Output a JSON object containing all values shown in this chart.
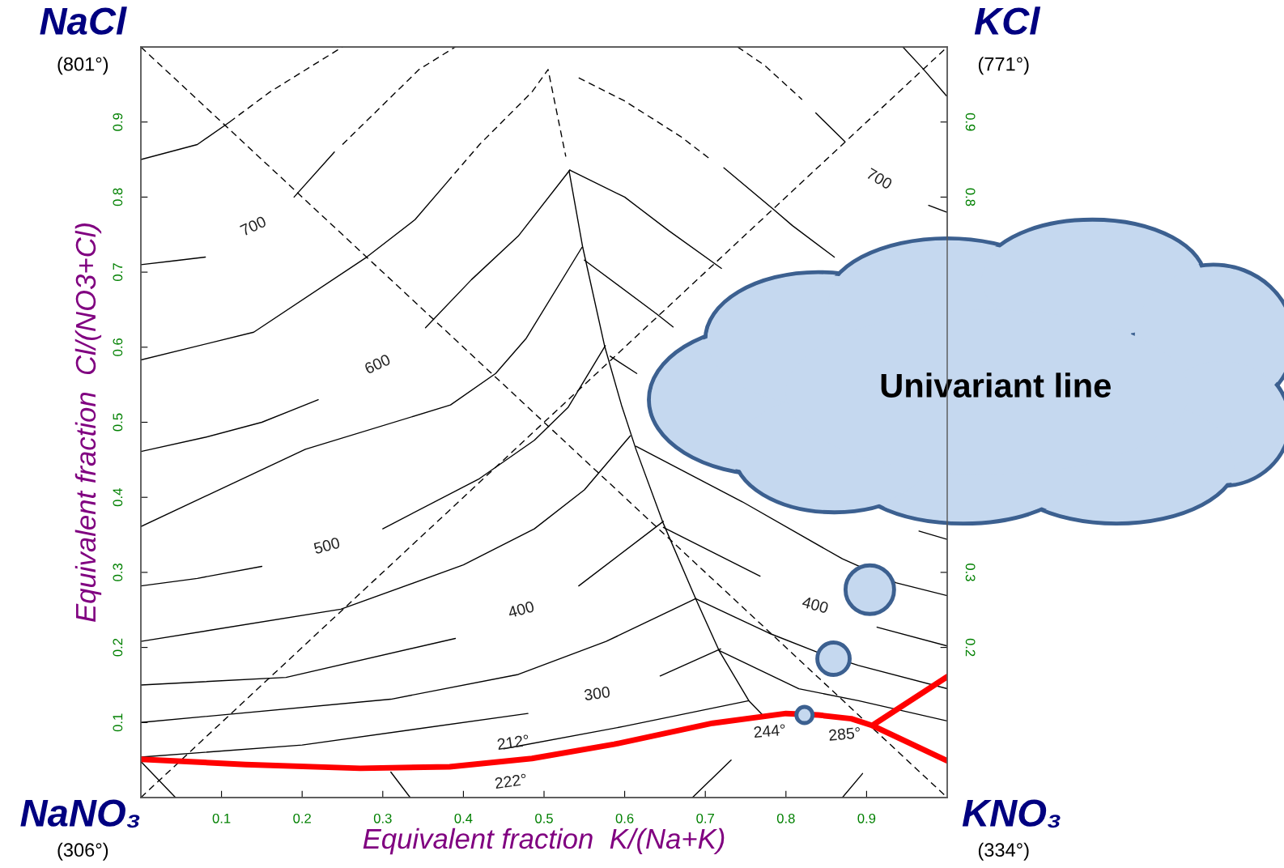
{
  "chart_data": {
    "type": "line",
    "xlabel": "Equivalent fraction  K/(Na+K)",
    "ylabel": "Equivalent fraction  Cl/(NO3+Cl)",
    "xlim": [
      0,
      1
    ],
    "ylim": [
      0,
      1
    ],
    "xticks": [
      0.1,
      0.2,
      0.3,
      0.4,
      0.5,
      0.6,
      0.7,
      0.8,
      0.9
    ],
    "yticks": [
      0.1,
      0.2,
      0.3,
      0.4,
      0.5,
      0.6,
      0.7,
      0.8,
      0.9
    ],
    "y2lim": [
      0,
      1
    ],
    "y2ticks": [
      0.2,
      0.3,
      0.8,
      0.9
    ],
    "annotations": [
      "NaCl",
      "(801°)",
      "KCl",
      "(771°)",
      "NaNO₃",
      "(306°)",
      "KNO₃",
      "(334°)",
      "Univariant line",
      "700",
      "600",
      "500",
      "400",
      "300",
      "212°",
      "222°",
      "244°",
      "285°",
      "400",
      "700"
    ],
    "series": [
      {
        "color": "#000000",
        "line_style": "dashed",
        "x": [
          0,
          1
        ],
        "values": [
          1,
          0
        ]
      },
      {
        "color": "#000000",
        "line_style": "dashed",
        "x": [
          0,
          1
        ],
        "values": [
          0,
          1
        ]
      },
      {
        "color": "#000000",
        "x": [
          0,
          0.07,
          0.11
        ],
        "values": [
          0.85,
          0.87,
          0.9
        ]
      },
      {
        "color": "#000000",
        "line_style": "dashed",
        "x": [
          0.11,
          0.16,
          0.25
        ],
        "values": [
          0.9,
          0.94,
          1.0
        ]
      },
      {
        "color": "#000000",
        "x": [
          0,
          0.04,
          0.08
        ],
        "values": [
          0.71,
          0.715,
          0.72
        ]
      },
      {
        "color": "#000000",
        "x": [
          0.19,
          0.24
        ],
        "values": [
          0.8,
          0.86
        ]
      },
      {
        "color": "#000000",
        "line_style": "dashed",
        "x": [
          0.25,
          0.345,
          0.39
        ],
        "values": [
          0.87,
          0.97,
          1.0
        ]
      },
      {
        "color": "#000000",
        "x": [
          0,
          0.14,
          0.28,
          0.34,
          0.38
        ],
        "values": [
          0.583,
          0.62,
          0.72,
          0.77,
          0.82
        ]
      },
      {
        "color": "#000000",
        "line_style": "dashed",
        "x": [
          0.38,
          0.42,
          0.485,
          0.505,
          0.527
        ],
        "values": [
          0.82,
          0.87,
          0.94,
          0.97,
          0.854
        ]
      },
      {
        "color": "#000000",
        "x": [
          0.531,
          0.548,
          0.575,
          0.596,
          0.614,
          0.648,
          0.688,
          0.717,
          0.754,
          0.772
        ],
        "values": [
          0.835,
          0.733,
          0.602,
          0.523,
          0.464,
          0.365,
          0.265,
          0.196,
          0.129,
          0.109
        ]
      },
      {
        "color": "#000000",
        "x": [
          0.353,
          0.41,
          0.468,
          0.532
        ],
        "values": [
          0.626,
          0.69,
          0.748,
          0.836
        ]
      },
      {
        "color": "#000000",
        "x": [
          0,
          0.08,
          0.15,
          0.22
        ],
        "values": [
          0.461,
          0.48,
          0.5,
          0.53
        ]
      },
      {
        "color": "#000000",
        "x": [
          0,
          0.204,
          0.384,
          0.44,
          0.478,
          0.547
        ],
        "values": [
          0.361,
          0.464,
          0.523,
          0.565,
          0.612,
          0.733
        ]
      },
      {
        "color": "#000000",
        "x": [
          0,
          0.07,
          0.15
        ],
        "values": [
          0.282,
          0.292,
          0.308
        ]
      },
      {
        "color": "#000000",
        "x": [
          0.3,
          0.42,
          0.488,
          0.53,
          0.576
        ],
        "values": [
          0.358,
          0.425,
          0.476,
          0.52,
          0.602
        ]
      },
      {
        "color": "#000000",
        "x": [
          0,
          0.248,
          0.4,
          0.488,
          0.55,
          0.607
        ],
        "values": [
          0.208,
          0.251,
          0.31,
          0.358,
          0.41,
          0.482
        ]
      },
      {
        "color": "#000000",
        "x": [
          0,
          0.18,
          0.39
        ],
        "values": [
          0.15,
          0.16,
          0.212
        ]
      },
      {
        "color": "#000000",
        "x": [
          0,
          0.31,
          0.468,
          0.577,
          0.688
        ],
        "values": [
          0.1,
          0.131,
          0.164,
          0.208,
          0.265
        ]
      },
      {
        "color": "#000000",
        "x": [
          0,
          0.2,
          0.48
        ],
        "values": [
          0.054,
          0.07,
          0.112
        ]
      },
      {
        "color": "#000000",
        "x": [
          0.45,
          0.6,
          0.754
        ],
        "values": [
          0.065,
          0.095,
          0.129
        ]
      },
      {
        "color": "#000000",
        "x": [
          0.644,
          0.719
        ],
        "values": [
          0.162,
          0.198
        ]
      },
      {
        "color": "#000000",
        "x": [
          0.543,
          0.648
        ],
        "values": [
          0.282,
          0.368
        ]
      },
      {
        "color": "#000000",
        "x": [
          0.532,
          0.6,
          0.655,
          0.72
        ],
        "values": [
          0.836,
          0.8,
          0.755,
          0.705
        ]
      },
      {
        "color": "#000000",
        "line_style": "dashed",
        "x": [
          0.543,
          0.6,
          0.669,
          0.708
        ],
        "values": [
          0.959,
          0.928,
          0.881,
          0.849
        ]
      },
      {
        "color": "#000000",
        "x": [
          0.723,
          0.783,
          0.808,
          0.86
        ],
        "values": [
          0.839,
          0.785,
          0.762,
          0.72
        ]
      },
      {
        "color": "#000000",
        "line_style": "dashed",
        "x": [
          0.74,
          0.773,
          0.82
        ],
        "values": [
          1.0,
          0.976,
          0.93
        ]
      },
      {
        "color": "#000000",
        "x": [
          0.837,
          0.873
        ],
        "values": [
          0.912,
          0.874
        ]
      },
      {
        "color": "#000000",
        "x": [
          0.945,
          0.97,
          0.999
        ],
        "values": [
          1.0,
          0.971,
          0.935
        ]
      },
      {
        "color": "#000000",
        "x": [
          0.977,
          0.999
        ],
        "values": [
          0.789,
          0.78
        ]
      },
      {
        "color": "#000000",
        "x": [
          0.55,
          0.64,
          0.66
        ],
        "values": [
          0.716,
          0.644,
          0.627
        ]
      },
      {
        "color": "#000000",
        "x": [
          0.582,
          0.615
        ],
        "values": [
          0.588,
          0.565
        ]
      },
      {
        "color": "#000000",
        "x": [
          0.614,
          0.746,
          0.87,
          0.937,
          1.0
        ],
        "values": [
          0.468,
          0.394,
          0.318,
          0.286,
          0.269
        ]
      },
      {
        "color": "#000000",
        "x": [
          0.648,
          0.768
        ],
        "values": [
          0.36,
          0.295
        ]
      },
      {
        "color": "#000000",
        "x": [
          0.688,
          0.779,
          0.838,
          0.89,
          1.0
        ],
        "values": [
          0.265,
          0.219,
          0.194,
          0.176,
          0.145
        ]
      },
      {
        "color": "#000000",
        "x": [
          0.717,
          0.816,
          0.89,
          1.0
        ],
        "values": [
          0.196,
          0.145,
          0.129,
          0.102
        ]
      },
      {
        "color": "#000000",
        "x": [
          0.913,
          1.0
        ],
        "values": [
          0.227,
          0.202
        ]
      },
      {
        "color": "#000000",
        "x": [
          0.965,
          1.0
        ],
        "values": [
          0.355,
          0.344
        ]
      },
      {
        "color": "#000000",
        "x": [
          0.684,
          0.732
        ],
        "values": [
          0,
          0.05
        ]
      },
      {
        "color": "#000000",
        "x": [
          0.87,
          0.895
        ],
        "values": [
          0,
          0.032
        ]
      },
      {
        "color": "#000000",
        "x": [
          0,
          0.043
        ],
        "values": [
          0.048,
          0
        ]
      },
      {
        "color": "#000000",
        "x": [
          0.31,
          0.334
        ],
        "values": [
          0.034,
          0
        ]
      },
      {
        "color": "#ff0000",
        "x": [
          0,
          0.13,
          0.272,
          0.383,
          0.485,
          0.587,
          0.709,
          0.8,
          0.84,
          0.881,
          0.907,
          1.0,
          0.907,
          1.0
        ],
        "values": [
          0.051,
          0.044,
          0.039,
          0.041,
          0.052,
          0.071,
          0.099,
          0.112,
          0.11,
          0.105,
          0.096,
          0.161,
          0.096,
          0.049
        ]
      }
    ]
  }
}
